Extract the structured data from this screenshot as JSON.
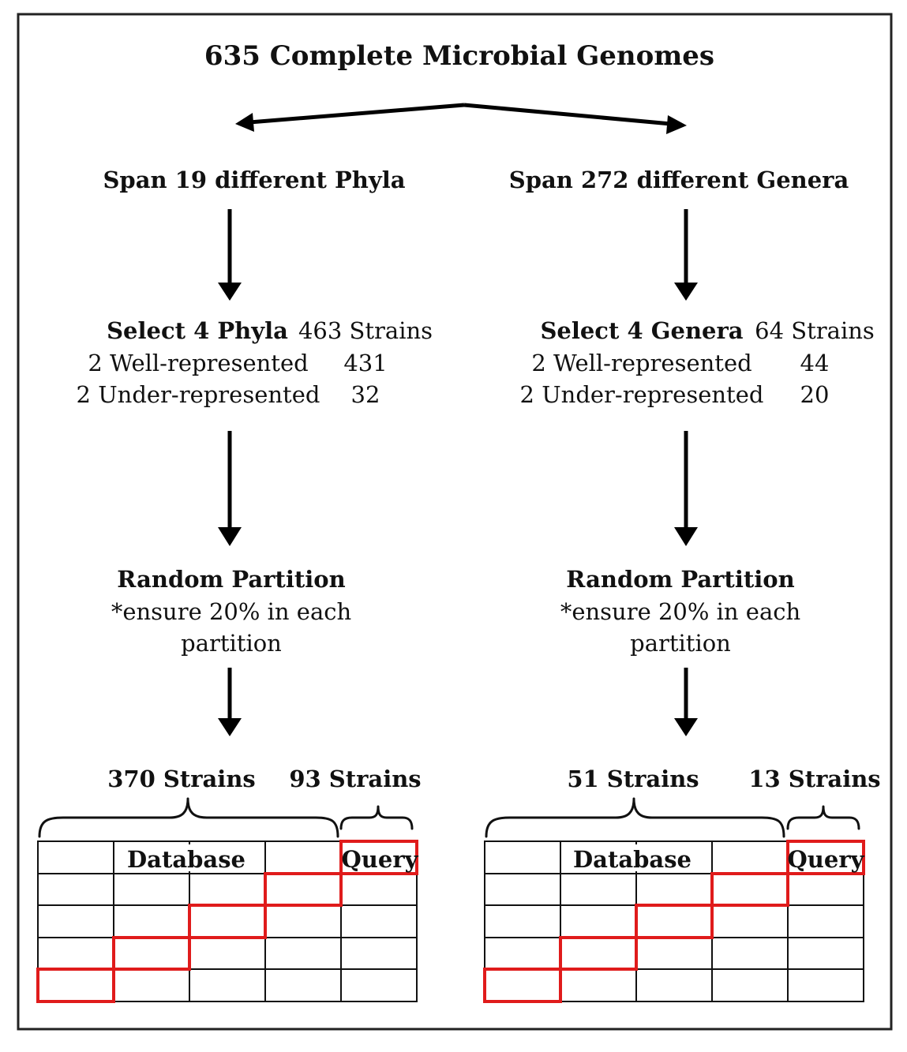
{
  "title": "635 Complete Microbial Genomes",
  "colors": {
    "border": "#111111",
    "arrow": "#000000",
    "highlight": "#e01b1b"
  },
  "left": {
    "span": "Span 19 different Phyla",
    "select_label": "Select 4 Phyla",
    "select_count": "463 Strains",
    "rows": [
      {
        "label": "2 Well-represented",
        "count": "431"
      },
      {
        "label": "2 Under-represented",
        "count": "32"
      }
    ],
    "partition_title": "Random Partition",
    "partition_note_1": "*ensure 20% in each",
    "partition_note_2": "partition",
    "db_strains": "370 Strains",
    "query_strains": "93 Strains",
    "db_label": "Database",
    "query_label": "Query"
  },
  "right": {
    "span": "Span 272 different Genera",
    "select_label": "Select 4 Genera",
    "select_count": "64 Strains",
    "rows": [
      {
        "label": "2 Well-represented",
        "count": "44"
      },
      {
        "label": "2 Under-represented",
        "count": "20"
      }
    ],
    "partition_title": "Random Partition",
    "partition_note_1": "*ensure 20% in each",
    "partition_note_2": "partition",
    "db_strains": "51 Strains",
    "query_strains": "13 Strains",
    "db_label": "Database",
    "query_label": "Query"
  }
}
